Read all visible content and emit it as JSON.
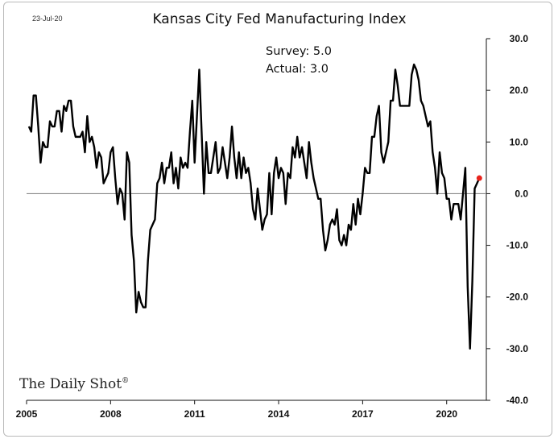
{
  "date_stamp": "23-Jul-20",
  "annotations": {
    "survey": "Survey: 5.0",
    "actual": "Actual:  3.0"
  },
  "source_logo": "The Daily Shot",
  "source_logo_mark": "®",
  "colors": {
    "line": "#000000",
    "last_point": "#e8231c",
    "zero_line": "#8a8a8a"
  },
  "chart_data": {
    "type": "line",
    "title": "Kansas City Fed Manufacturing Index",
    "xlabel": "",
    "ylabel": "",
    "x_ticks": [
      "2005",
      "2008",
      "2011",
      "2014",
      "2017",
      "2020"
    ],
    "y_ticks": [
      "30.0",
      "20.0",
      "10.0",
      "0.0",
      "-10.0",
      "-20.0",
      "-30.0",
      "-40.0"
    ],
    "ylim": [
      -40,
      30
    ],
    "xlim": [
      "2005-01",
      "2021-06"
    ],
    "y_axis_position": "right",
    "reference_line": 0,
    "series": [
      {
        "name": "",
        "x_start": "2005-02",
        "frequency": "monthly",
        "values": [
          13,
          12,
          19,
          19,
          13,
          6,
          10,
          9,
          9,
          14,
          13,
          13,
          16,
          16,
          12,
          17,
          16,
          18,
          18,
          13,
          11,
          11,
          11,
          12,
          8,
          15,
          10,
          11,
          9,
          5,
          8,
          7,
          2,
          3,
          4,
          8,
          9,
          3,
          -2,
          1,
          0,
          -5,
          8,
          6,
          -8,
          -13,
          -23,
          -19,
          -21,
          -22,
          -22,
          -13,
          -7,
          -6,
          -5,
          2,
          3,
          6,
          2,
          5,
          5,
          8,
          2,
          5,
          1,
          7,
          5,
          6,
          5,
          12,
          18,
          6,
          15,
          24,
          12,
          0,
          10,
          4,
          4,
          7,
          10,
          4,
          5,
          9,
          6,
          3,
          7,
          13,
          7,
          3,
          8,
          3,
          7,
          4,
          5,
          2,
          -3,
          -5,
          1,
          -3,
          -7,
          -5,
          -4,
          4,
          -4,
          4,
          7,
          3,
          5,
          4,
          -2,
          4,
          3,
          9,
          7,
          11,
          7,
          9,
          6,
          3,
          10,
          6,
          3,
          1,
          -1,
          -1,
          -7,
          -11,
          -9,
          -6,
          -5,
          -6,
          -3,
          -9,
          -10,
          -8,
          -10,
          -6,
          -7,
          -2,
          -6,
          -1,
          -4,
          0,
          5,
          4,
          4,
          11,
          11,
          15,
          17,
          8,
          6,
          8,
          10,
          18,
          18,
          24,
          21,
          17,
          17,
          17,
          17,
          17,
          23,
          25,
          24,
          22,
          18,
          17,
          15,
          13,
          14,
          8,
          5,
          0,
          8,
          4,
          3,
          -1,
          -1,
          -5,
          -2,
          -2,
          -2,
          -5,
          0,
          5,
          -18,
          -30,
          -17,
          1,
          2,
          3
        ]
      }
    ]
  }
}
